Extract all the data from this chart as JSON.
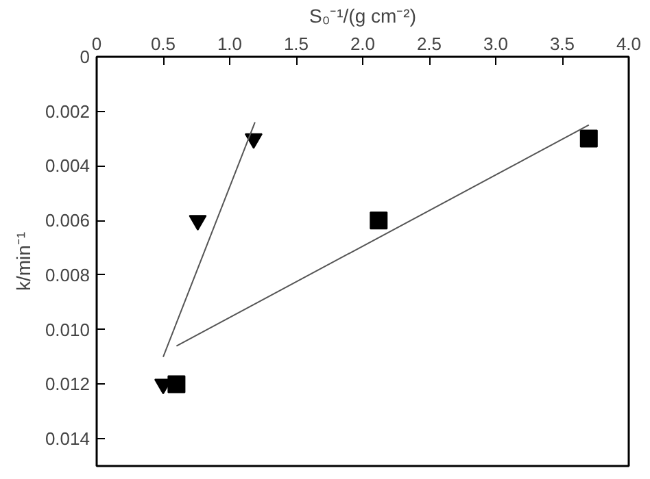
{
  "chart_data": {
    "type": "scatter",
    "xlabel": "S₀⁻¹/(g cm⁻²)",
    "ylabel": "k/min⁻¹",
    "xlim": [
      0,
      4.0
    ],
    "xticks": [
      0,
      0.5,
      {
        "value": 1,
        "label": "1.0"
      },
      1.5,
      {
        "value": 2,
        "label": "2.0"
      },
      2.5,
      {
        "value": 3,
        "label": "3.0"
      },
      3.5,
      {
        "value": 4,
        "label": "4.0"
      }
    ],
    "ylim": [
      0.015,
      0
    ],
    "yticks": [
      0,
      0.002,
      0.004,
      0.006,
      0.008,
      {
        "value": 0.01,
        "label": "0.010"
      },
      0.012,
      0.014
    ],
    "grid": false,
    "series": [
      {
        "marker": "triangle",
        "color": "#000000",
        "x": [
          0.5,
          0.76,
          1.18
        ],
        "values": [
          0.012,
          0.006,
          0.003
        ]
      },
      {
        "marker": "square",
        "color": "#000000",
        "x": [
          0.6,
          2.12,
          3.7
        ],
        "values": [
          0.012,
          0.006,
          0.003
        ]
      },
      {
        "type": "line",
        "color": "#555555",
        "x": [
          0.5,
          1.19
        ],
        "values": [
          0.011,
          0.0024
        ]
      },
      {
        "type": "line",
        "color": "#555555",
        "x": [
          0.6,
          3.7
        ],
        "values": [
          0.0106,
          0.0025
        ]
      }
    ]
  }
}
